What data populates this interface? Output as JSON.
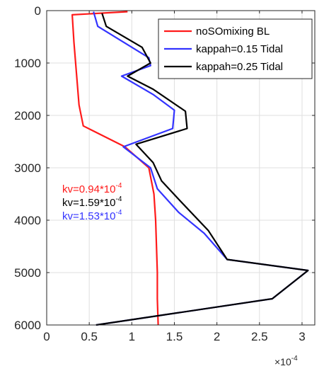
{
  "chart_data": {
    "type": "line",
    "xlabel": "",
    "ylabel": "",
    "xlim": [
      0,
      3.15
    ],
    "ylim": [
      6000,
      0
    ],
    "y_reversed": true,
    "x_ticks": [
      0,
      0.5,
      1,
      1.5,
      2,
      2.5,
      3
    ],
    "x_tick_labels": [
      "0",
      "0.5",
      "1",
      "1.5",
      "2",
      "2.5",
      "3"
    ],
    "y_ticks": [
      0,
      1000,
      2000,
      3000,
      4000,
      5000,
      6000
    ],
    "y_tick_labels": [
      "0",
      "1000",
      "2000",
      "3000",
      "4000",
      "5000",
      "6000"
    ],
    "x_exponent_label": {
      "base": "×10",
      "exponent": "-4"
    },
    "grid": true,
    "legend_position": "top-right",
    "series": [
      {
        "name": "noSOmixing BL",
        "color": "#ff1a1a",
        "points": [
          [
            0.95,
            20
          ],
          [
            0.3,
            80
          ],
          [
            0.32,
            600
          ],
          [
            0.35,
            1200
          ],
          [
            0.38,
            1800
          ],
          [
            0.43,
            2200
          ],
          [
            0.92,
            2600
          ],
          [
            1.2,
            3000
          ],
          [
            1.26,
            3500
          ],
          [
            1.28,
            4000
          ],
          [
            1.29,
            4500
          ],
          [
            1.3,
            5000
          ],
          [
            1.3,
            5500
          ],
          [
            1.31,
            6000
          ]
        ]
      },
      {
        "name": "kappah=0.15 Tidal",
        "color": "#3333ff",
        "points": [
          [
            0.55,
            20
          ],
          [
            0.6,
            300
          ],
          [
            1.2,
            900
          ],
          [
            1.22,
            1050
          ],
          [
            0.88,
            1250
          ],
          [
            1.25,
            1600
          ],
          [
            1.5,
            1900
          ],
          [
            1.48,
            2250
          ],
          [
            0.9,
            2600
          ],
          [
            1.22,
            3000
          ],
          [
            1.3,
            3400
          ],
          [
            1.55,
            3850
          ],
          [
            1.85,
            4250
          ],
          [
            2.12,
            4750
          ],
          [
            3.07,
            4960
          ],
          [
            2.65,
            5500
          ],
          [
            0.58,
            6000
          ]
        ]
      },
      {
        "name": "kappah=0.25 Tidal",
        "color": "#000000",
        "points": [
          [
            0.65,
            50
          ],
          [
            0.7,
            300
          ],
          [
            1.12,
            700
          ],
          [
            1.22,
            1000
          ],
          [
            0.95,
            1250
          ],
          [
            1.25,
            1500
          ],
          [
            1.63,
            1920
          ],
          [
            1.65,
            2250
          ],
          [
            1.05,
            2550
          ],
          [
            1.25,
            2900
          ],
          [
            1.35,
            3250
          ],
          [
            1.55,
            3600
          ],
          [
            1.9,
            4200
          ],
          [
            2.12,
            4750
          ],
          [
            3.07,
            4960
          ],
          [
            2.65,
            5500
          ],
          [
            0.58,
            6000
          ]
        ]
      }
    ],
    "annotations": [
      {
        "prefix": "kv=0.94*10",
        "exponent": "-4",
        "color": "#ff1a1a"
      },
      {
        "prefix": "kv=1.59*10",
        "exponent": "-4",
        "color": "#000000"
      },
      {
        "prefix": "kv=1.53*10",
        "exponent": "-4",
        "color": "#3333ff"
      }
    ]
  }
}
